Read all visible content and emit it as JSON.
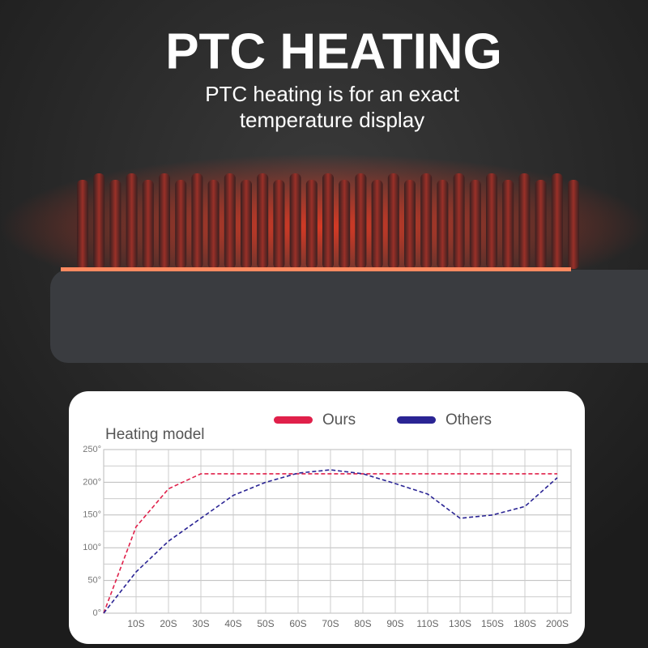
{
  "header": {
    "title": "PTC HEATING",
    "subtitle": "PTC heating is for an exact temperature display"
  },
  "chart_data": {
    "type": "line",
    "title": "Heating model",
    "categories": [
      null,
      "10S",
      "20S",
      "30S",
      "40S",
      "50S",
      "60S",
      "70S",
      "80S",
      "90S",
      "110S",
      "130S",
      "150S",
      "180S",
      "200S"
    ],
    "series": [
      {
        "name": "Ours",
        "color": "#e0204a",
        "values": [
          0,
          132,
          190,
          213,
          213,
          213,
          213,
          213,
          213,
          213,
          213,
          213,
          213,
          213,
          213
        ]
      },
      {
        "name": "Others",
        "color": "#2a2494",
        "values": [
          0,
          63,
          110,
          145,
          180,
          200,
          214,
          219,
          213,
          198,
          182,
          145,
          150,
          163,
          207
        ]
      }
    ],
    "ylim": [
      0,
      250
    ],
    "yticks": [
      {
        "value": 0,
        "label": "0°"
      },
      {
        "value": 50,
        "label": "50°"
      },
      {
        "value": 100,
        "label": "100°"
      },
      {
        "value": 150,
        "label": "150°"
      },
      {
        "value": 200,
        "label": "200°"
      },
      {
        "value": 250,
        "label": "250°"
      }
    ],
    "grid": true,
    "dashed": true
  }
}
